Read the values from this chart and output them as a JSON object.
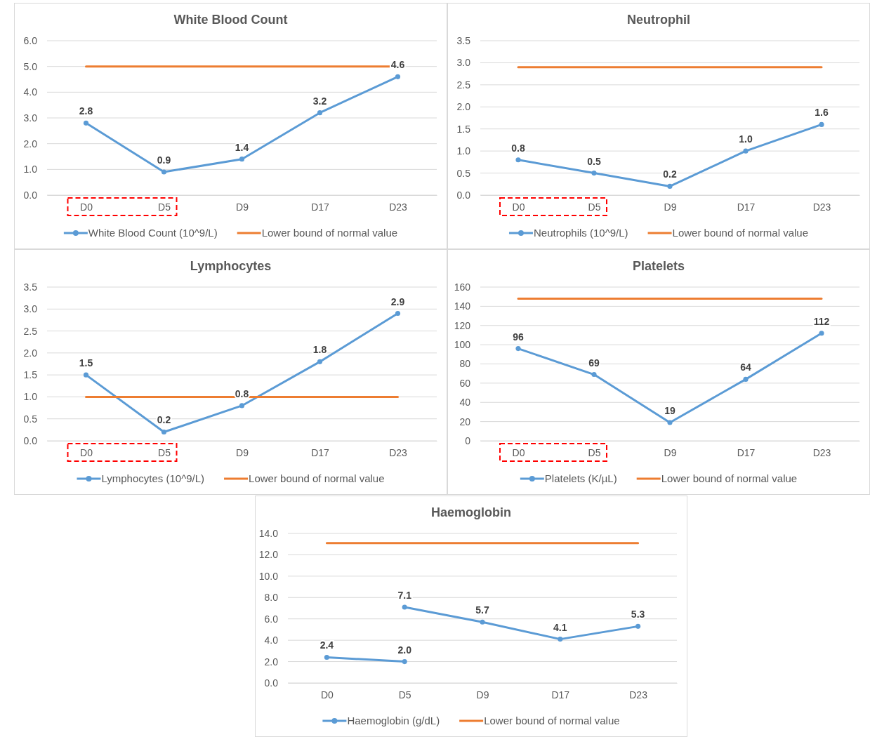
{
  "chart_data": [
    {
      "type": "line",
      "title": "White Blood Count",
      "categories": [
        "D0",
        "D5",
        "D9",
        "D17",
        "D23"
      ],
      "ylim": [
        0,
        6
      ],
      "yticks": [
        {
          "value": 0,
          "label": "0.0"
        },
        {
          "value": 1,
          "label": "1.0"
        },
        {
          "value": 2,
          "label": "2.0"
        },
        {
          "value": 3,
          "label": "3.0"
        },
        {
          "value": 4,
          "label": "4.0"
        },
        {
          "value": 5,
          "label": "5.0"
        },
        {
          "value": 6,
          "label": "6.0"
        }
      ],
      "grid": "y",
      "legend": "bottom",
      "marker": "circle",
      "series": [
        {
          "name": "White Blood Count (10^9/L)",
          "color": "#5b9bd5",
          "values": [
            2.8,
            0.9,
            1.4,
            3.2,
            4.6
          ],
          "value_labels": [
            "2.8",
            "0.9",
            "1.4",
            "3.2",
            "4.6"
          ]
        },
        {
          "name": "Lower bound of normal value",
          "color": "#ed7d31",
          "marker": "none",
          "values": [
            5.0,
            5.0,
            5.0,
            5.0,
            5.0
          ]
        }
      ]
    },
    {
      "type": "line",
      "title": "Neutrophil",
      "categories": [
        "D0",
        "D5",
        "D9",
        "D17",
        "D23"
      ],
      "ylim": [
        0,
        3.5
      ],
      "yticks": [
        {
          "value": 0,
          "label": "0.0"
        },
        0.5,
        {
          "value": 1,
          "label": "1.0"
        },
        1.5,
        {
          "value": 2,
          "label": "2.0"
        },
        2.5,
        {
          "value": 3,
          "label": "3.0"
        },
        3.5
      ],
      "grid": "y",
      "legend": "bottom",
      "marker": "circle",
      "series": [
        {
          "name": "Neutrophils (10^9/L)",
          "color": "#5b9bd5",
          "values": [
            0.8,
            0.5,
            0.2,
            1.0,
            1.6
          ],
          "value_labels": [
            "0.8",
            "0.5",
            "0.2",
            "1.0",
            "1.6"
          ]
        },
        {
          "name": "Lower bound of normal value",
          "color": "#ed7d31",
          "marker": "none",
          "values": [
            2.9,
            2.9,
            2.9,
            2.9,
            2.9
          ]
        }
      ]
    },
    {
      "type": "line",
      "title": "Lymphocytes",
      "categories": [
        "D0",
        "D5",
        "D9",
        "D17",
        "D23"
      ],
      "ylim": [
        0,
        3.5
      ],
      "yticks": [
        {
          "value": 0,
          "label": "0.0"
        },
        0.5,
        {
          "value": 1,
          "label": "1.0"
        },
        1.5,
        {
          "value": 2,
          "label": "2.0"
        },
        2.5,
        {
          "value": 3,
          "label": "3.0"
        },
        3.5
      ],
      "grid": "y",
      "legend": "bottom",
      "marker": "circle",
      "series": [
        {
          "name": "Lymphocytes (10^9/L)",
          "color": "#5b9bd5",
          "values": [
            1.5,
            0.2,
            0.8,
            1.8,
            2.9
          ],
          "value_labels": [
            "1.5",
            "0.2",
            "0.8",
            "1.8",
            "2.9"
          ]
        },
        {
          "name": "Lower bound of normal value",
          "color": "#ed7d31",
          "marker": "none",
          "values": [
            1.0,
            1.0,
            1.0,
            1.0,
            1.0
          ]
        }
      ]
    },
    {
      "type": "line",
      "title": "Platelets",
      "categories": [
        "D0",
        "D5",
        "D9",
        "D17",
        "D23"
      ],
      "ylim": [
        0,
        160
      ],
      "yticks": [
        0,
        20,
        40,
        60,
        80,
        100,
        120,
        140,
        160
      ],
      "grid": "y",
      "legend": "bottom",
      "marker": "circle",
      "series": [
        {
          "name": "Platelets (K/µL)",
          "color": "#5b9bd5",
          "values": [
            96,
            69,
            19,
            64,
            112
          ],
          "value_labels": [
            "96",
            "69",
            "19",
            "64",
            "112"
          ]
        },
        {
          "name": "Lower bound of normal value",
          "color": "#ed7d31",
          "marker": "none",
          "values": [
            148,
            148,
            148,
            148,
            148
          ]
        }
      ]
    },
    {
      "type": "line",
      "title": "Haemoglobin",
      "categories": [
        "D0",
        "D5",
        "D9",
        "D17",
        "D23"
      ],
      "ylim": [
        0,
        14
      ],
      "yticks": [
        {
          "value": 0,
          "label": "0.0"
        },
        {
          "value": 2,
          "label": "2.0"
        },
        {
          "value": 4,
          "label": "4.0"
        },
        {
          "value": 6,
          "label": "6.0"
        },
        {
          "value": 8,
          "label": "8.0"
        },
        {
          "value": 10,
          "label": "10.0"
        },
        {
          "value": 12,
          "label": "12.0"
        },
        {
          "value": 14,
          "label": "14.0"
        }
      ],
      "grid": "y",
      "legend": "bottom",
      "marker": "circle",
      "series": [
        {
          "name": "Haemoglobin (g/dL)",
          "color": "#5b9bd5",
          "values": [
            2.4,
            2.0,
            null,
            null,
            null
          ],
          "value_labels": [
            "2.4",
            "2.0",
            null,
            null,
            null
          ]
        },
        {
          "color": "#5b9bd5",
          "values": [
            null,
            7.1,
            5.7,
            4.1,
            5.3
          ],
          "value_labels": [
            null,
            "7.1",
            "5.7",
            "4.1",
            "5.3"
          ]
        },
        {
          "name": "Lower bound of normal value",
          "color": "#ed7d31",
          "marker": "none",
          "values": [
            13.1,
            13.1,
            13.1,
            13.1,
            13.1
          ]
        }
      ]
    }
  ]
}
